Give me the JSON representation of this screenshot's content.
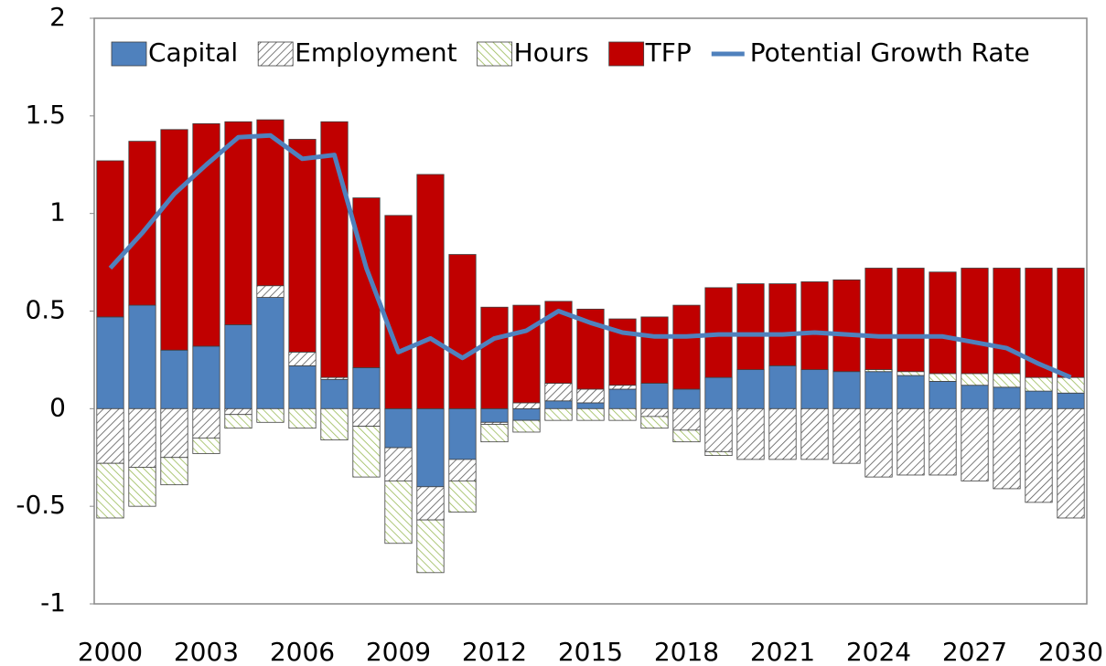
{
  "chart_data": {
    "type": "bar",
    "categories": [
      "2000",
      null,
      null,
      "2003",
      null,
      null,
      "2006",
      null,
      null,
      "2009",
      null,
      null,
      "2012",
      null,
      null,
      "2015",
      null,
      null,
      "2018",
      null,
      null,
      "2021",
      null,
      null,
      "2024",
      null,
      null,
      "2027",
      null,
      null,
      "2030"
    ],
    "series": [
      {
        "name": "Capital",
        "type": "bar",
        "color": "#4f81bd",
        "hatch": false,
        "values": [
          0.47,
          0.53,
          0.3,
          0.32,
          0.43,
          0.57,
          0.22,
          0.15,
          0.21,
          -0.2,
          -0.4,
          -0.26,
          -0.07,
          -0.06,
          0.04,
          0.03,
          0.1,
          0.13,
          0.1,
          0.16,
          0.2,
          0.22,
          0.2,
          0.19,
          0.19,
          0.17,
          0.14,
          0.12,
          0.11,
          0.09,
          0.08
        ]
      },
      {
        "name": "Employment",
        "type": "bar",
        "color": "#595959",
        "hatch": true,
        "values": [
          -0.28,
          -0.3,
          -0.25,
          -0.15,
          -0.03,
          0.06,
          0.07,
          0.01,
          -0.09,
          -0.17,
          -0.17,
          -0.11,
          -0.01,
          0.03,
          0.09,
          0.07,
          0.02,
          -0.04,
          -0.11,
          -0.22,
          -0.26,
          -0.26,
          -0.26,
          -0.28,
          -0.35,
          -0.34,
          -0.34,
          -0.37,
          -0.41,
          -0.48,
          -0.56
        ]
      },
      {
        "name": "Hours",
        "type": "bar",
        "color": "#9bbb59",
        "hatch": true,
        "values": [
          -0.28,
          -0.2,
          -0.14,
          -0.08,
          -0.07,
          -0.07,
          -0.1,
          -0.16,
          -0.26,
          -0.32,
          -0.27,
          -0.16,
          -0.09,
          -0.06,
          -0.06,
          -0.06,
          -0.06,
          -0.06,
          -0.06,
          -0.02,
          0,
          0,
          0,
          0,
          0.01,
          0.02,
          0.04,
          0.06,
          0.07,
          0.07,
          0.08
        ]
      },
      {
        "name": "TFP",
        "type": "bar",
        "color": "#c00000",
        "hatch": false,
        "values": [
          0.8,
          0.84,
          1.13,
          1.14,
          1.04,
          0.85,
          1.09,
          1.31,
          0.87,
          0.99,
          1.2,
          0.79,
          0.52,
          0.5,
          0.42,
          0.41,
          0.34,
          0.34,
          0.43,
          0.46,
          0.44,
          0.42,
          0.45,
          0.47,
          0.52,
          0.53,
          0.52,
          0.54,
          0.54,
          0.56,
          0.56
        ]
      },
      {
        "name": "Potential Growth Rate",
        "type": "line",
        "color": "#4f81bd",
        "values": [
          0.72,
          0.9,
          1.1,
          1.25,
          1.39,
          1.4,
          1.28,
          1.3,
          0.72,
          0.29,
          0.36,
          0.26,
          0.36,
          0.4,
          0.5,
          0.44,
          0.39,
          0.37,
          0.37,
          0.38,
          0.38,
          0.38,
          0.39,
          0.38,
          0.37,
          0.37,
          0.37,
          0.34,
          0.31,
          0.23,
          0.16
        ]
      }
    ],
    "ylim": [
      -1,
      2
    ],
    "yticks": [
      -1,
      -0.5,
      0,
      0.5,
      1,
      1.5,
      2
    ],
    "grid": false
  }
}
